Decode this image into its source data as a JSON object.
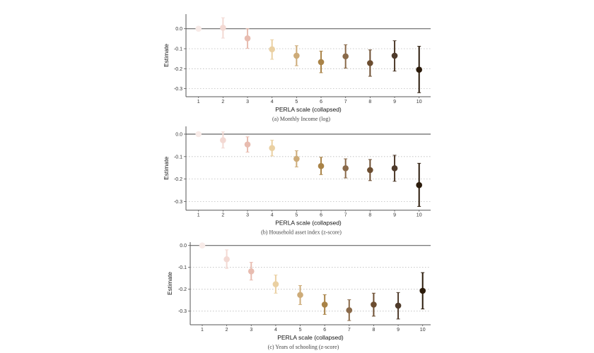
{
  "chart_data": [
    {
      "type": "scatter",
      "title": "(a) Monthly Income (log)",
      "xlabel": "PERLA scale (collapsed)",
      "ylabel": "Estimate",
      "x": [
        1,
        2,
        3,
        4,
        5,
        6,
        7,
        8,
        9,
        10
      ],
      "estimate": [
        0,
        0.005,
        -0.048,
        -0.103,
        -0.135,
        -0.167,
        -0.138,
        -0.172,
        -0.135,
        -0.205
      ],
      "ci_low": [
        0,
        -0.047,
        -0.098,
        -0.153,
        -0.185,
        -0.22,
        -0.197,
        -0.238,
        -0.212,
        -0.32
      ],
      "ci_high": [
        0,
        0.055,
        0.0,
        -0.055,
        -0.085,
        -0.112,
        -0.08,
        -0.106,
        -0.06,
        -0.088
      ],
      "yticks": [
        "0.0",
        "-0.1",
        "-0.2",
        "-0.3"
      ],
      "ytick_values": [
        0,
        -0.1,
        -0.2,
        -0.3
      ],
      "ylim": [
        -0.34,
        0.06
      ],
      "grid": "dotted horizontal at -0.1, -0.2, -0.3; solid reference line at 0"
    },
    {
      "type": "scatter",
      "title": "(b) Household asset index (z-score)",
      "xlabel": "PERLA scale (collapsed)",
      "ylabel": "Estimate",
      "x": [
        1,
        2,
        3,
        4,
        5,
        6,
        7,
        8,
        9,
        10
      ],
      "estimate": [
        0,
        -0.027,
        -0.046,
        -0.062,
        -0.11,
        -0.142,
        -0.152,
        -0.16,
        -0.152,
        -0.227
      ],
      "ci_low": [
        0,
        -0.062,
        -0.08,
        -0.097,
        -0.146,
        -0.18,
        -0.195,
        -0.207,
        -0.21,
        -0.322
      ],
      "ci_high": [
        0,
        0.01,
        -0.012,
        -0.027,
        -0.074,
        -0.103,
        -0.11,
        -0.113,
        -0.094,
        -0.13
      ],
      "yticks": [
        "0.0",
        "-0.1",
        "-0.2",
        "-0.3"
      ],
      "ytick_values": [
        0,
        -0.1,
        -0.2,
        -0.3
      ],
      "ylim": [
        -0.34,
        0.02
      ],
      "grid": "dotted horizontal at -0.1, -0.2, -0.3; solid reference line at 0"
    },
    {
      "type": "scatter",
      "title": "(c) Years of schooling (z-score)",
      "xlabel": "PERLA scale (collapsed)",
      "ylabel": "Estimate",
      "x": [
        1,
        2,
        3,
        4,
        5,
        6,
        7,
        8,
        9,
        10
      ],
      "estimate": [
        0,
        -0.063,
        -0.118,
        -0.177,
        -0.226,
        -0.27,
        -0.296,
        -0.27,
        -0.275,
        -0.207
      ],
      "ci_low": [
        0,
        -0.105,
        -0.158,
        -0.218,
        -0.27,
        -0.315,
        -0.343,
        -0.323,
        -0.336,
        -0.29
      ],
      "ci_high": [
        0,
        -0.02,
        -0.077,
        -0.135,
        -0.183,
        -0.225,
        -0.248,
        -0.218,
        -0.215,
        -0.124
      ],
      "yticks": [
        "0.0",
        "-0.1",
        "-0.2",
        "-0.3"
      ],
      "ytick_values": [
        0,
        -0.1,
        -0.2,
        -0.3
      ],
      "ylim": [
        -0.36,
        0.01
      ],
      "grid": "dotted horizontal at -0.1, -0.2, -0.3; solid reference line at 0"
    }
  ],
  "colors": [
    "#f8ebe8",
    "#f3d9d3",
    "#e8bcb0",
    "#ead0a2",
    "#cdab78",
    "#a98347",
    "#8a6a4a",
    "#6c4d30",
    "#4f3b2b",
    "#2b1b0b"
  ],
  "axis_color": "#555555"
}
